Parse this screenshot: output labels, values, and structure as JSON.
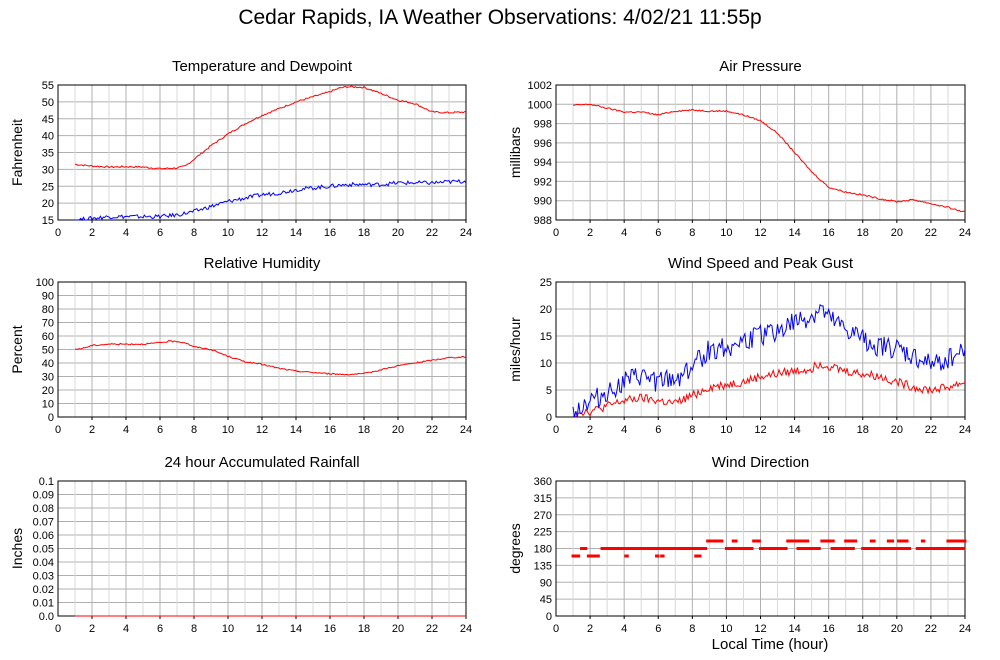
{
  "page": {
    "title": "Cedar Rapids, IA Weather Observations: 4/02/21 11:55p",
    "xlabel": "Local Time (hour)"
  },
  "colors": {
    "red": "#ff0000",
    "blue": "#0000ff",
    "grid": "#b0b0b0",
    "axis": "#000000"
  },
  "chart_data": [
    {
      "id": "temp",
      "type": "line",
      "title": "Temperature and Dewpoint",
      "ylabel": "Fahrenheit",
      "xlim": [
        0,
        24
      ],
      "xticks": [
        2,
        4,
        6,
        8,
        10,
        12,
        14,
        16,
        18,
        20,
        22,
        24
      ],
      "ylim": [
        15,
        55
      ],
      "yticks": [
        15,
        20,
        25,
        30,
        35,
        40,
        45,
        50,
        55
      ],
      "series": [
        {
          "color": "#ff0000",
          "noise": 0.25,
          "x": [
            1.0,
            2,
            3,
            4,
            5,
            6,
            7,
            7.5,
            8,
            9,
            10,
            11,
            12,
            13,
            14,
            15,
            16,
            16.5,
            17,
            18,
            19,
            20,
            21,
            22,
            23,
            24
          ],
          "y": [
            31.5,
            31,
            30.7,
            30.8,
            30.7,
            30.2,
            30.4,
            31,
            33,
            37,
            40.5,
            43.5,
            46,
            48,
            50,
            51.5,
            53,
            54,
            54.5,
            54.3,
            52.5,
            50.5,
            49.5,
            47,
            46.8,
            47
          ]
        },
        {
          "color": "#0000ff",
          "noise": 0.6,
          "x": [
            1.0,
            2,
            3,
            4,
            5,
            6,
            7,
            8,
            9,
            10,
            11,
            12,
            13,
            14,
            15,
            16,
            17,
            18,
            19,
            20,
            21,
            22,
            23,
            24
          ],
          "y": [
            15,
            15.5,
            16,
            16,
            16,
            16,
            16.5,
            17.5,
            19,
            20.5,
            21.5,
            22.5,
            23,
            24,
            24.5,
            25,
            25.5,
            25.5,
            25.5,
            26,
            26,
            26,
            26.3,
            26.5
          ]
        }
      ]
    },
    {
      "id": "pressure",
      "type": "line",
      "title": "Air Pressure",
      "ylabel": "millibars",
      "xlim": [
        0,
        24
      ],
      "xticks": [
        2,
        4,
        6,
        8,
        10,
        12,
        14,
        16,
        18,
        20,
        22,
        24
      ],
      "ylim": [
        988,
        1002
      ],
      "yticks": [
        988,
        990,
        992,
        994,
        996,
        998,
        1000,
        1002
      ],
      "series": [
        {
          "color": "#ff0000",
          "noise": 0.08,
          "x": [
            1.0,
            2,
            3,
            4,
            5,
            6,
            7,
            8,
            9,
            10,
            11,
            12,
            13,
            14,
            15,
            16,
            17,
            18,
            19,
            20,
            21,
            22,
            23,
            24
          ],
          "y": [
            999.9,
            1000,
            999.6,
            999.2,
            999.2,
            998.9,
            999.3,
            999.4,
            999.3,
            999.3,
            998.9,
            998.3,
            997,
            995,
            993,
            991.4,
            990.9,
            990.6,
            990.2,
            989.9,
            990.1,
            989.7,
            989.3,
            988.8
          ]
        }
      ]
    },
    {
      "id": "rh",
      "type": "line",
      "title": "Relative Humidity",
      "ylabel": "Percent",
      "xlim": [
        0,
        24
      ],
      "xticks": [
        2,
        4,
        6,
        8,
        10,
        12,
        14,
        16,
        18,
        20,
        22,
        24
      ],
      "ylim": [
        0,
        100
      ],
      "yticks": [
        0,
        10,
        20,
        30,
        40,
        50,
        60,
        70,
        80,
        90,
        100
      ],
      "series": [
        {
          "color": "#ff0000",
          "noise": 0.5,
          "x": [
            1.0,
            1.5,
            2,
            3,
            4,
            5,
            6,
            6.5,
            7,
            7.5,
            8,
            9,
            10,
            11,
            12,
            13,
            14,
            15,
            16,
            17,
            18,
            19,
            20,
            21,
            22,
            23,
            24
          ],
          "y": [
            50,
            51,
            53,
            54,
            54,
            54,
            55,
            56,
            56,
            55,
            52,
            50,
            45,
            41,
            39,
            36,
            34,
            33,
            32,
            31.5,
            32,
            35,
            38,
            40,
            42,
            44,
            44.5
          ]
        }
      ]
    },
    {
      "id": "wind",
      "type": "line",
      "title": "Wind Speed and Peak Gust",
      "ylabel": "miles/hour",
      "xlim": [
        0,
        24
      ],
      "xticks": [
        2,
        4,
        6,
        8,
        10,
        12,
        14,
        16,
        18,
        20,
        22,
        24
      ],
      "ylim": [
        0,
        25
      ],
      "yticks": [
        0,
        5,
        10,
        15,
        20,
        25
      ],
      "series": [
        {
          "color": "#ff0000",
          "noise": 0.8,
          "x": [
            1.0,
            1.5,
            2,
            3,
            4,
            5,
            6,
            7,
            8,
            9,
            10,
            11,
            12,
            13,
            14,
            15,
            15.5,
            16,
            17,
            18,
            19,
            20,
            21,
            22,
            23,
            24
          ],
          "y": [
            0.5,
            1,
            1,
            2,
            3,
            3.5,
            3,
            2.5,
            4,
            5.5,
            6,
            6.5,
            7.5,
            8,
            8.5,
            9,
            10,
            9.5,
            8.5,
            8,
            7.5,
            6.5,
            5.5,
            5,
            5.5,
            6.5
          ]
        },
        {
          "color": "#0000ff",
          "noise": 2.0,
          "x": [
            1.0,
            1.5,
            2,
            3,
            4,
            5,
            6,
            7,
            8,
            9,
            10,
            11,
            12,
            13,
            14,
            15,
            15.5,
            16,
            17,
            18,
            19,
            20,
            21,
            22,
            23,
            24
          ],
          "y": [
            1,
            2,
            3,
            4.5,
            6.5,
            7.5,
            6.5,
            7,
            9.5,
            12.5,
            13,
            14,
            15,
            16,
            17.5,
            18.5,
            20,
            18,
            16,
            14.5,
            13,
            12.5,
            11,
            9.5,
            11,
            12.5
          ]
        }
      ]
    },
    {
      "id": "rain",
      "type": "line",
      "title": "24 hour Accumulated Rainfall",
      "ylabel": "Inches",
      "xlim": [
        0,
        24
      ],
      "xticks": [
        2,
        4,
        6,
        8,
        10,
        12,
        14,
        16,
        18,
        20,
        22,
        24
      ],
      "ylim": [
        0,
        0.1
      ],
      "yticks": [
        0.0,
        0.01,
        0.02,
        0.03,
        0.04,
        0.05,
        0.06,
        0.07,
        0.08,
        0.09,
        0.1
      ],
      "ytick_labels": [
        "0.0",
        "0.01",
        "0.02",
        "0.03",
        "0.04",
        "0.05",
        "0.06",
        "0.07",
        "0.08",
        "0.09",
        "0.1"
      ],
      "series": [
        {
          "color": "#ff0000",
          "noise": 0,
          "x": [
            1.0,
            24
          ],
          "y": [
            0,
            0
          ]
        }
      ]
    },
    {
      "id": "dir",
      "type": "scatter",
      "title": "Wind Direction",
      "ylabel": "degrees",
      "xlim": [
        0,
        24
      ],
      "xticks": [
        2,
        4,
        6,
        8,
        10,
        12,
        14,
        16,
        18,
        20,
        22,
        24
      ],
      "ylim": [
        0,
        360
      ],
      "yticks": [
        0,
        45,
        90,
        135,
        180,
        225,
        270,
        315,
        360
      ],
      "segments": [
        {
          "color": "#ff0000",
          "y": 160,
          "ranges": [
            [
              1.0,
              1.4
            ],
            [
              1.9,
              2.5
            ],
            [
              4.1,
              4.2
            ],
            [
              5.9,
              6.0
            ],
            [
              6.2,
              6.3
            ],
            [
              8.2,
              8.5
            ]
          ]
        },
        {
          "color": "#ff0000",
          "y": 180,
          "ranges": [
            [
              1.5,
              1.8
            ],
            [
              2.7,
              8.8
            ],
            [
              10.0,
              11.5
            ],
            [
              12.0,
              13.5
            ],
            [
              14.2,
              15.5
            ],
            [
              16.2,
              17.5
            ],
            [
              18.0,
              20.8
            ],
            [
              21.2,
              24.0
            ]
          ]
        },
        {
          "color": "#ff0000",
          "y": 200,
          "ranges": [
            [
              8.9,
              9.8
            ],
            [
              10.4,
              10.6
            ],
            [
              11.6,
              12.0
            ],
            [
              13.6,
              14.8
            ],
            [
              15.6,
              16.3
            ],
            [
              17.0,
              17.6
            ],
            [
              18.5,
              18.7
            ],
            [
              19.5,
              19.8
            ],
            [
              20.1,
              20.6
            ],
            [
              21.5,
              21.6
            ],
            [
              23.0,
              24.0
            ]
          ]
        }
      ]
    }
  ]
}
